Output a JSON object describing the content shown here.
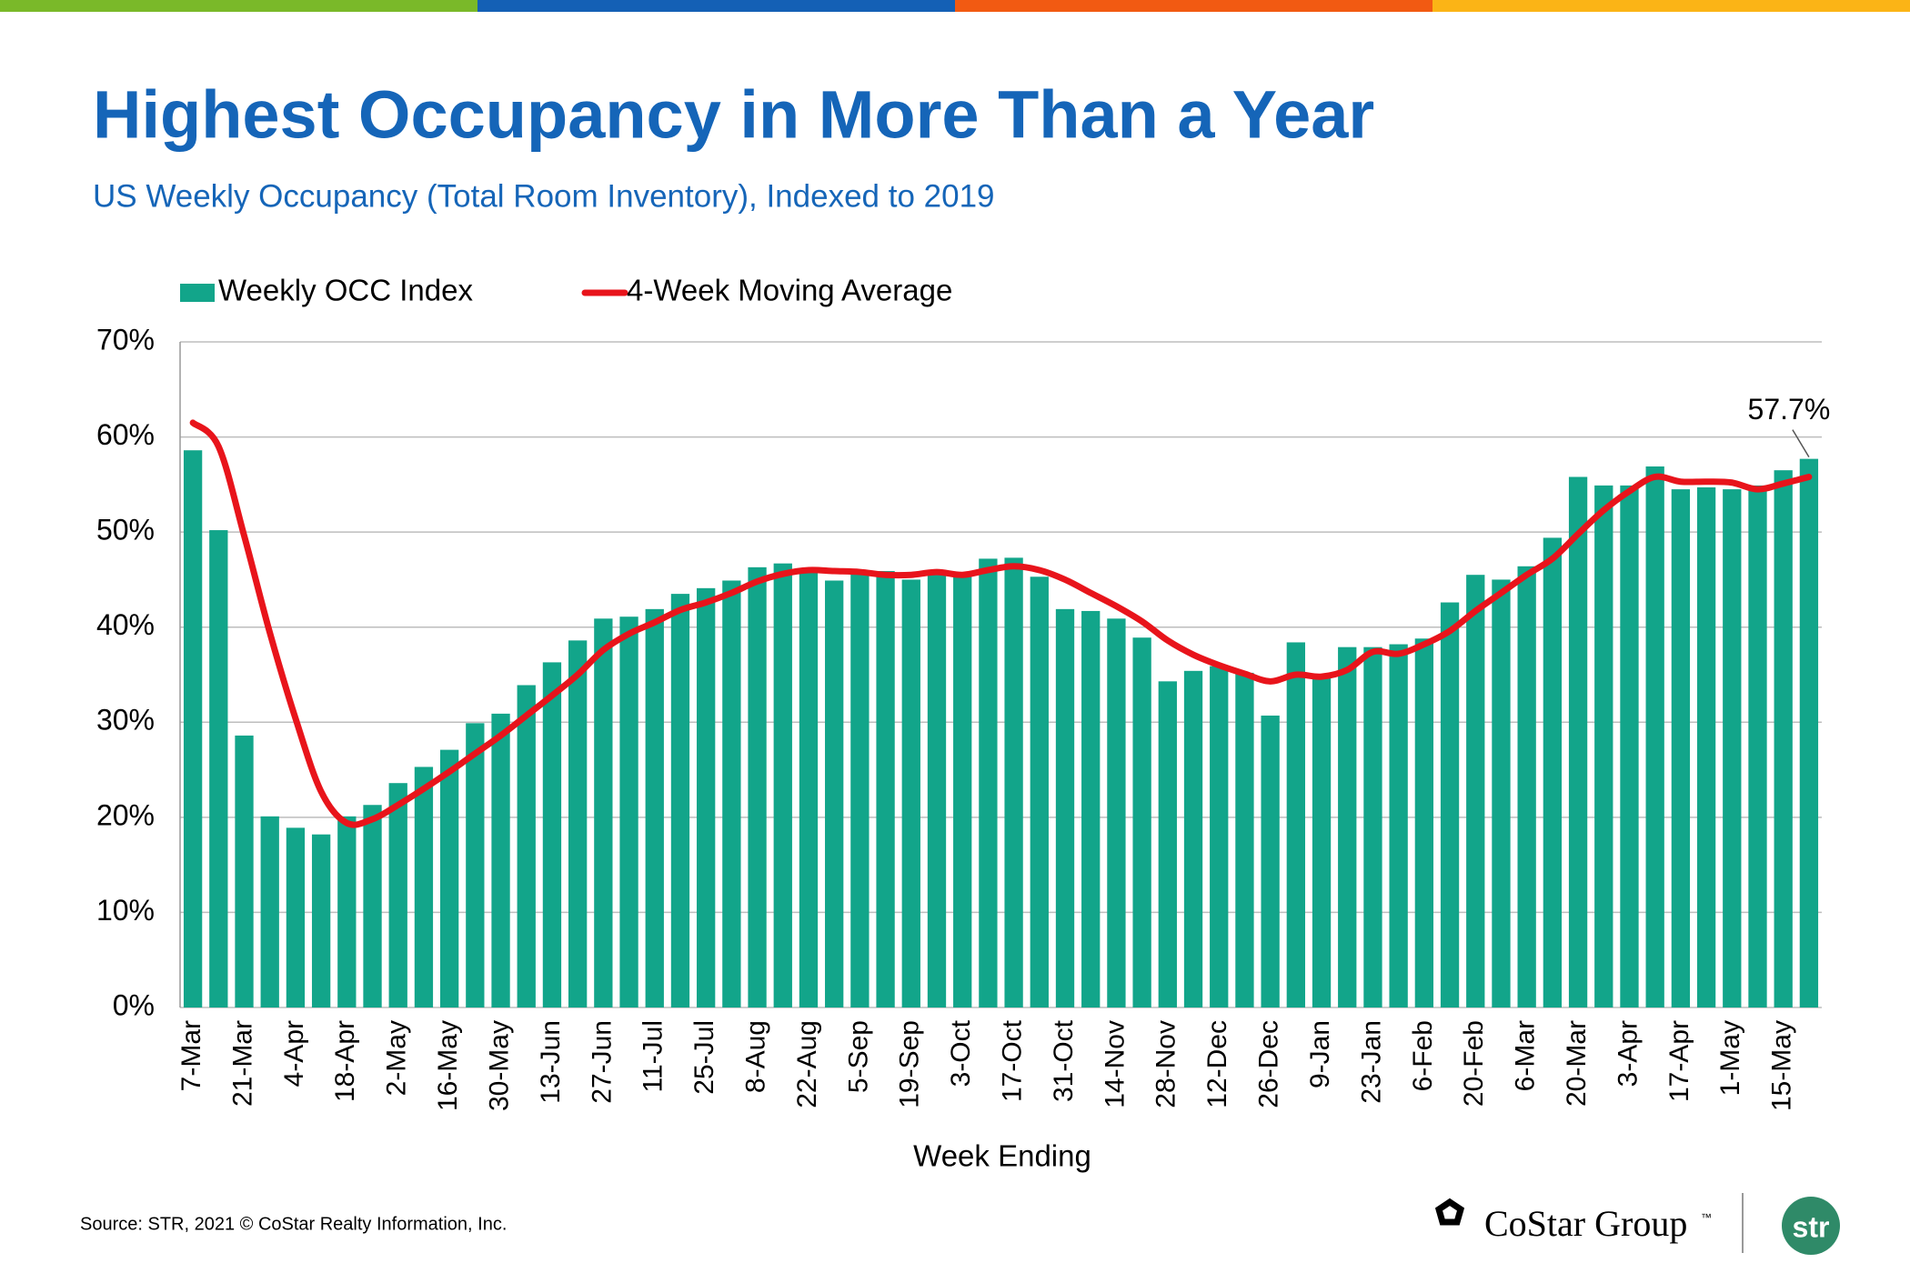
{
  "chart_data": {
    "type": "bar",
    "title": "Highest Occupancy in More Than a Year",
    "subtitle": "US Weekly Occupancy (Total Room Inventory), Indexed to 2019",
    "x_label": "Week Ending",
    "categories": [
      "7-Mar",
      null,
      "21-Mar",
      null,
      "4-Apr",
      null,
      "18-Apr",
      null,
      "2-May",
      null,
      "16-May",
      null,
      "30-May",
      null,
      "13-Jun",
      null,
      "27-Jun",
      null,
      "11-Jul",
      null,
      "25-Jul",
      null,
      "8-Aug",
      null,
      "22-Aug",
      null,
      "5-Sep",
      null,
      "19-Sep",
      null,
      "3-Oct",
      null,
      "17-Oct",
      null,
      "31-Oct",
      null,
      "14-Nov",
      null,
      "28-Nov",
      null,
      "12-Dec",
      null,
      "26-Dec",
      null,
      "9-Jan",
      null,
      "23-Jan",
      null,
      "6-Feb",
      null,
      "20-Feb",
      null,
      "6-Mar",
      null,
      "20-Mar",
      null,
      "3-Apr",
      null,
      "17-Apr",
      null,
      "1-May",
      null,
      "15-May",
      null
    ],
    "series": [
      {
        "name": "Weekly OCC Index",
        "type": "bar",
        "color": "#12a58a",
        "values": [
          58.6,
          50.2,
          28.6,
          20.1,
          18.9,
          18.2,
          20.1,
          21.3,
          23.6,
          25.3,
          27.1,
          29.9,
          30.9,
          33.9,
          36.3,
          38.6,
          40.9,
          41.1,
          41.9,
          43.5,
          44.1,
          44.9,
          46.3,
          46.7,
          45.9,
          44.9,
          45.8,
          45.9,
          45.0,
          45.6,
          45.5,
          47.2,
          47.3,
          45.3,
          41.9,
          41.7,
          40.9,
          38.9,
          34.3,
          35.4,
          35.9,
          35.2,
          30.7,
          38.4,
          34.9,
          37.9,
          37.9,
          38.2,
          38.8,
          42.6,
          45.5,
          45.0,
          46.4,
          49.4,
          55.8,
          54.9,
          54.9,
          56.9,
          54.5,
          54.7,
          54.5,
          54.9,
          56.5,
          57.7
        ],
        "value_labels": [
          null,
          null,
          null,
          null,
          null,
          null,
          null,
          null,
          null,
          null,
          null,
          null,
          null,
          null,
          null,
          null,
          null,
          null,
          null,
          null,
          null,
          null,
          null,
          null,
          null,
          null,
          null,
          null,
          null,
          null,
          null,
          null,
          null,
          null,
          null,
          null,
          null,
          null,
          null,
          null,
          null,
          null,
          null,
          null,
          null,
          null,
          null,
          null,
          null,
          null,
          null,
          null,
          null,
          null,
          null,
          null,
          null,
          null,
          null,
          null,
          null,
          null,
          null,
          "57.7%"
        ]
      },
      {
        "name": "4-Week Moving Average",
        "type": "line",
        "color": "#e8141b",
        "values": [
          61.5,
          59,
          49.6,
          39.4,
          30.4,
          22.7,
          19.4,
          19.8,
          21.3,
          23,
          24.8,
          26.7,
          28.6,
          30.7,
          32.8,
          35,
          37.6,
          39.3,
          40.5,
          41.8,
          42.6,
          43.6,
          44.8,
          45.6,
          46,
          45.9,
          45.8,
          45.5,
          45.5,
          45.8,
          45.5,
          46,
          46.4,
          46,
          45,
          43.6,
          42.2,
          40.6,
          38.6,
          37.1,
          36,
          35.1,
          34.3,
          35,
          34.8,
          35.5,
          37.4,
          37.2,
          38.2,
          39.6,
          41.7,
          43.6,
          45.5,
          47.2,
          49.8,
          52.3,
          54.3,
          55.8,
          55.3,
          55.3,
          55.2,
          54.5,
          55.1,
          55.8
        ]
      }
    ],
    "ylim": [
      0,
      70
    ],
    "yticks": [
      {
        "value": 0,
        "label": "0%"
      },
      {
        "value": 10,
        "label": "10%"
      },
      {
        "value": 20,
        "label": "20%"
      },
      {
        "value": 30,
        "label": "30%"
      },
      {
        "value": 40,
        "label": "40%"
      },
      {
        "value": 50,
        "label": "50%"
      },
      {
        "value": 60,
        "label": "60%"
      },
      {
        "value": 70,
        "label": "70%"
      }
    ],
    "grid": true
  },
  "footer": {
    "source": "Source: STR, 2021 © CoStar Realty Information, Inc.",
    "logo": "CoStar Group",
    "logo_tm": "™",
    "badge": "str"
  }
}
